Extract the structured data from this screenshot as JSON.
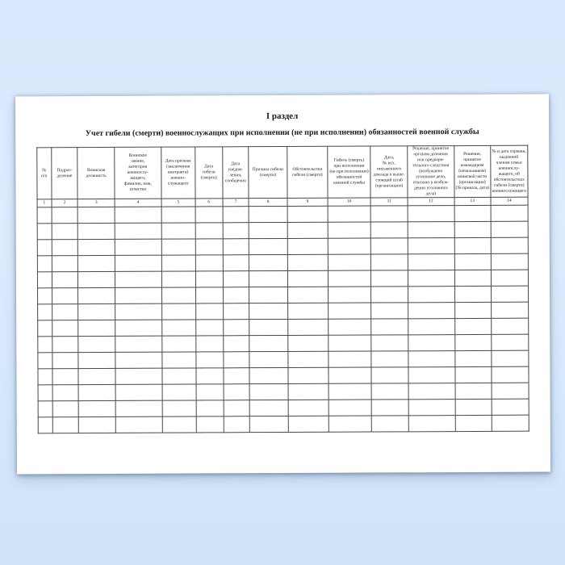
{
  "theme": {
    "background_top_color": "#d8e8fc",
    "background_bottom_color": "#cfe3f8",
    "paper_color": "#ffffff",
    "grid_color": "#474747",
    "text_color": "#1c1c1c"
  },
  "document": {
    "section_title": "I раздел",
    "table_title": "Учет гибели (смерти) военнослужащих при исполнении (не при исполнении) обязанностей военной службы",
    "table": {
      "columns": [
        {
          "number": "1",
          "width_pct": 2.9,
          "label": "№\nп/п"
        },
        {
          "number": "2",
          "width_pct": 5.4,
          "label": "Подраз-\nделение"
        },
        {
          "number": "3",
          "width_pct": 7.5,
          "label": "Воинская\nдолжность"
        },
        {
          "number": "4",
          "width_pct": 9.5,
          "label": "Воинское\nзвание,\nкатегория\nвоеннослу-\nжащего,\nфамилия, имя,\nотчество"
        },
        {
          "number": "5",
          "width_pct": 6.9,
          "label": "Дата призыва\n(заключения\nконтракта)\nвоенно-\nслужащего"
        },
        {
          "number": "6",
          "width_pct": 5.6,
          "label": "Дата\nгибели\n(смерти)"
        },
        {
          "number": "7",
          "width_pct": 5.3,
          "label": "Дата\nуведом-\nления,\nсообщения"
        },
        {
          "number": "8",
          "width_pct": 7.9,
          "label": "Причина гибели\n(смерти)"
        },
        {
          "number": "9",
          "width_pct": 8.2,
          "label": "Обстоятельства\nгибели (смерти)"
        },
        {
          "number": "10",
          "width_pct": 8.8,
          "label": "Гибель (смерть)\nпри исполнении\n(не при исполнении)\nобязанностей\nвоенной службы"
        },
        {
          "number": "11",
          "width_pct": 7.5,
          "label": "Дата,\n№ исх.\nписьменного\nдоклада в выше-\nстоящий штаб\n(организацию)"
        },
        {
          "number": "12",
          "width_pct": 9.5,
          "label": "Решение, принятое\nорганом дознания\nили предвари-\nтельного следствия\n(возбуждено\nуголовное дело,\nотказано в возбуж-\nдении уголовного\nдела)"
        },
        {
          "number": "13",
          "width_pct": 7.4,
          "label": "Решение,\nпринятое\nкомандиром\n(начальником)\nвоинской части\n(организации)\n(№ приказа, дата)"
        },
        {
          "number": "14",
          "width_pct": 7.6,
          "label": "№ и дата справки,\nвыданной\nчленам семьи\nвоеннослу-\nжащего, об\nобстоятельствах\nгибели (смерти)\nвоеннослужащего"
        }
      ],
      "empty_row_count": 14
    }
  }
}
